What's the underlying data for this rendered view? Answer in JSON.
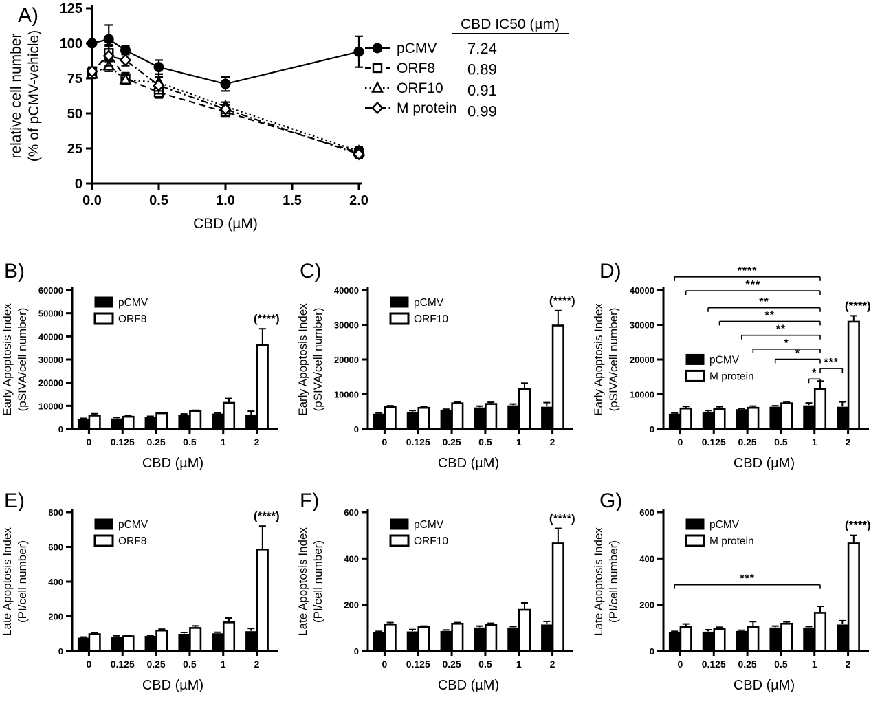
{
  "figure_labels": {
    "a": "A)",
    "b": "B)",
    "c": "C)",
    "d": "D)",
    "e": "E)",
    "f": "F)",
    "g": "G)"
  },
  "chart_data": [
    {
      "panel": "a",
      "type": "line",
      "xlabel": "CBD (µM)",
      "ylabel": [
        "relative cell number",
        "(% of pCMV-vehicle)"
      ],
      "xlim": [
        0,
        2
      ],
      "ylim": [
        0,
        125
      ],
      "xticks": {
        "values": [
          0,
          0.5,
          1.0,
          1.5,
          2.0
        ],
        "labels": [
          "0.0",
          "0.5",
          "1.0",
          "1.5",
          "2.0"
        ]
      },
      "yticks": {
        "values": [
          0,
          25,
          50,
          75,
          100,
          125
        ],
        "labels": [
          "0",
          "25",
          "50",
          "75",
          "100",
          "125"
        ]
      },
      "x": [
        0,
        0.125,
        0.25,
        0.5,
        1,
        2
      ],
      "series": [
        {
          "name": "pCMV",
          "marker": "circle",
          "filled": true,
          "dash": "solid",
          "values": [
            100,
            103,
            95,
            83,
            71,
            94
          ],
          "errors": [
            2,
            10,
            3,
            5,
            5,
            11
          ]
        },
        {
          "name": "ORF8",
          "marker": "square",
          "filled": false,
          "dash": "dashed",
          "values": [
            79,
            93,
            75,
            65,
            51,
            22
          ],
          "errors": [
            4,
            6,
            4,
            4,
            3,
            3
          ]
        },
        {
          "name": "ORF10",
          "marker": "triangle",
          "filled": false,
          "dash": "dotted",
          "values": [
            78,
            84,
            74,
            72,
            55,
            23
          ],
          "errors": [
            3,
            4,
            3,
            6,
            3,
            3
          ]
        },
        {
          "name": "M protein",
          "marker": "diamond",
          "filled": false,
          "dash": "dashdot",
          "values": [
            80,
            91,
            88,
            70,
            53,
            21
          ],
          "errors": [
            3,
            7,
            4,
            6,
            3,
            3
          ]
        }
      ],
      "ic50_table": {
        "header": "CBD IC50 (µm)",
        "rows": [
          {
            "label": "pCMV",
            "value": "7.24"
          },
          {
            "label": "ORF8",
            "value": "0.89"
          },
          {
            "label": "ORF10",
            "value": "0.91"
          },
          {
            "label": "M protein",
            "value": "0.99"
          }
        ]
      }
    },
    {
      "panel": "b",
      "type": "bar",
      "xlabel": "CBD (µM)",
      "ylabel": [
        "Early Apoptosis Index",
        "(pSIVA/cell number)"
      ],
      "categories": [
        "0",
        "0.125",
        "0.25",
        "0.5",
        "1",
        "2"
      ],
      "ylim": [
        0,
        60000
      ],
      "yticks": [
        0,
        10000,
        20000,
        30000,
        40000,
        50000,
        60000
      ],
      "series": [
        {
          "name": "pCMV",
          "fill": "black",
          "values": [
            4200,
            4400,
            5200,
            6100,
            6500,
            5900
          ],
          "errors": [
            400,
            600,
            300,
            400,
            400,
            1800
          ]
        },
        {
          "name": "ORF8",
          "fill": "white",
          "values": [
            5800,
            5300,
            6800,
            7700,
            11300,
            36300
          ],
          "errors": [
            800,
            500,
            300,
            400,
            1900,
            7000
          ]
        }
      ],
      "annotation": {
        "text": "(****)",
        "group": 5,
        "series": 1
      },
      "brackets": [],
      "legend_y_data": null
    },
    {
      "panel": "c",
      "type": "bar",
      "xlabel": "CBD (µM)",
      "ylabel": [
        "Early Apoptosis Index",
        "(pSIVA/cell number)"
      ],
      "categories": [
        "0",
        "0.125",
        "0.25",
        "0.5",
        "1",
        "2"
      ],
      "ylim": [
        0,
        40000
      ],
      "yticks": [
        0,
        10000,
        20000,
        30000,
        40000
      ],
      "series": [
        {
          "name": "pCMV",
          "fill": "black",
          "values": [
            4300,
            4800,
            5400,
            6100,
            6700,
            6300
          ],
          "errors": [
            300,
            500,
            300,
            500,
            500,
            1300
          ]
        },
        {
          "name": "ORF10",
          "fill": "white",
          "values": [
            6300,
            6100,
            7400,
            7200,
            11500,
            29800
          ],
          "errors": [
            400,
            400,
            400,
            500,
            1700,
            4300
          ]
        }
      ],
      "annotation": {
        "text": "(****)",
        "group": 5,
        "series": 1
      },
      "brackets": [],
      "legend_y_data": null
    },
    {
      "panel": "d",
      "type": "bar",
      "xlabel": "CBD (µM)",
      "ylabel": [
        "Early Apoptosis Index",
        "(pSIVA/cell number)"
      ],
      "categories": [
        "0",
        "0.125",
        "0.25",
        "0.5",
        "1",
        "2"
      ],
      "ylim": [
        0,
        40000
      ],
      "yticks": [
        0,
        10000,
        20000,
        30000,
        40000
      ],
      "series": [
        {
          "name": "pCMV",
          "fill": "black",
          "values": [
            4300,
            4800,
            5600,
            6300,
            6700,
            6300
          ],
          "errors": [
            300,
            500,
            300,
            400,
            800,
            1500
          ]
        },
        {
          "name": "M protein",
          "fill": "white",
          "values": [
            5900,
            5700,
            6100,
            7400,
            11500,
            30900
          ],
          "errors": [
            600,
            700,
            500,
            300,
            2300,
            1700
          ]
        }
      ],
      "annotation": {
        "text": "(****)",
        "group": 5,
        "series": 1
      },
      "brackets": [
        {
          "stars": "****",
          "x1": {
            "g": 0,
            "s": 0
          },
          "x2": {
            "g": 4,
            "s": 1
          },
          "y": 43800
        },
        {
          "stars": "***",
          "x1": {
            "g": 0,
            "s": 1
          },
          "x2": {
            "g": 4,
            "s": 1
          },
          "y": 39800
        },
        {
          "stars": "**",
          "x1": {
            "g": 1,
            "s": 0
          },
          "x2": {
            "g": 4,
            "s": 1
          },
          "y": 34900
        },
        {
          "stars": "**",
          "x1": {
            "g": 1,
            "s": 1
          },
          "x2": {
            "g": 4,
            "s": 1
          },
          "y": 31000
        },
        {
          "stars": "**",
          "x1": {
            "g": 2,
            "s": 0
          },
          "x2": {
            "g": 4,
            "s": 1
          },
          "y": 27000
        },
        {
          "stars": "*",
          "x1": {
            "g": 2,
            "s": 1
          },
          "x2": {
            "g": 4,
            "s": 1
          },
          "y": 23000
        },
        {
          "stars": "*",
          "x1": {
            "g": 3,
            "s": 0
          },
          "x2": {
            "g": 4,
            "s": 1
          },
          "y": 20100
        },
        {
          "stars": "***",
          "x1": {
            "g": 4,
            "s": 1
          },
          "x2": {
            "g": 5,
            "s": 0
          },
          "y": 17400
        },
        {
          "stars": "*",
          "x1": {
            "g": 4,
            "s": 0
          },
          "x2": {
            "g": 4,
            "s": 1
          },
          "y": 14400
        }
      ],
      "legend_y_data": 21500
    },
    {
      "panel": "e",
      "type": "bar",
      "xlabel": "CBD (µM)",
      "ylabel": [
        "Late Apoptosis Index",
        "(PI/cell number)"
      ],
      "categories": [
        "0",
        "0.125",
        "0.25",
        "0.5",
        "1",
        "2"
      ],
      "ylim": [
        0,
        800
      ],
      "yticks": [
        0,
        200,
        400,
        600,
        800
      ],
      "series": [
        {
          "name": "pCMV",
          "fill": "black",
          "values": [
            75,
            80,
            85,
            97,
            100,
            112
          ],
          "errors": [
            6,
            8,
            6,
            10,
            8,
            18
          ]
        },
        {
          "name": "ORF8",
          "fill": "white",
          "values": [
            97,
            85,
            118,
            133,
            165,
            585
          ],
          "errors": [
            8,
            6,
            8,
            12,
            25,
            135
          ]
        }
      ],
      "annotation": {
        "text": "(****)",
        "group": 5,
        "series": 1
      },
      "brackets": [],
      "legend_y_data": null
    },
    {
      "panel": "f",
      "type": "bar",
      "xlabel": "CBD (µM)",
      "ylabel": [
        "Late Apoptosis Index",
        "(PI/cell number)"
      ],
      "categories": [
        "0",
        "0.125",
        "0.25",
        "0.5",
        "1",
        "2"
      ],
      "ylim": [
        0,
        600
      ],
      "yticks": [
        0,
        200,
        400,
        600
      ],
      "series": [
        {
          "name": "pCMV",
          "fill": "black",
          "values": [
            80,
            83,
            85,
            100,
            100,
            113
          ],
          "errors": [
            5,
            10,
            6,
            8,
            6,
            15
          ]
        },
        {
          "name": "ORF10",
          "fill": "white",
          "values": [
            115,
            103,
            118,
            112,
            178,
            465
          ],
          "errors": [
            8,
            5,
            5,
            8,
            30,
            65
          ]
        }
      ],
      "annotation": {
        "text": "(****)",
        "group": 5,
        "series": 1
      },
      "brackets": [],
      "legend_y_data": null
    },
    {
      "panel": "g",
      "type": "bar",
      "xlabel": "CBD (µM)",
      "ylabel": [
        "Late Apoptosis Index",
        "(PI/cell number)"
      ],
      "categories": [
        "0",
        "0.125",
        "0.25",
        "0.5",
        "1",
        "2"
      ],
      "ylim": [
        0,
        600
      ],
      "yticks": [
        0,
        200,
        400,
        600
      ],
      "series": [
        {
          "name": "pCMV",
          "fill": "black",
          "values": [
            80,
            82,
            85,
            100,
            100,
            113
          ],
          "errors": [
            5,
            10,
            5,
            8,
            6,
            18
          ]
        },
        {
          "name": "M protein",
          "fill": "white",
          "values": [
            105,
            95,
            105,
            118,
            165,
            465
          ],
          "errors": [
            12,
            8,
            22,
            8,
            28,
            35
          ]
        }
      ],
      "annotation": {
        "text": "(****)",
        "group": 5,
        "series": 1
      },
      "brackets": [
        {
          "stars": "***",
          "x1": {
            "g": 0,
            "s": 0
          },
          "x2": {
            "g": 4,
            "s": 1
          },
          "y": 286
        }
      ],
      "legend_y_data": null
    }
  ]
}
